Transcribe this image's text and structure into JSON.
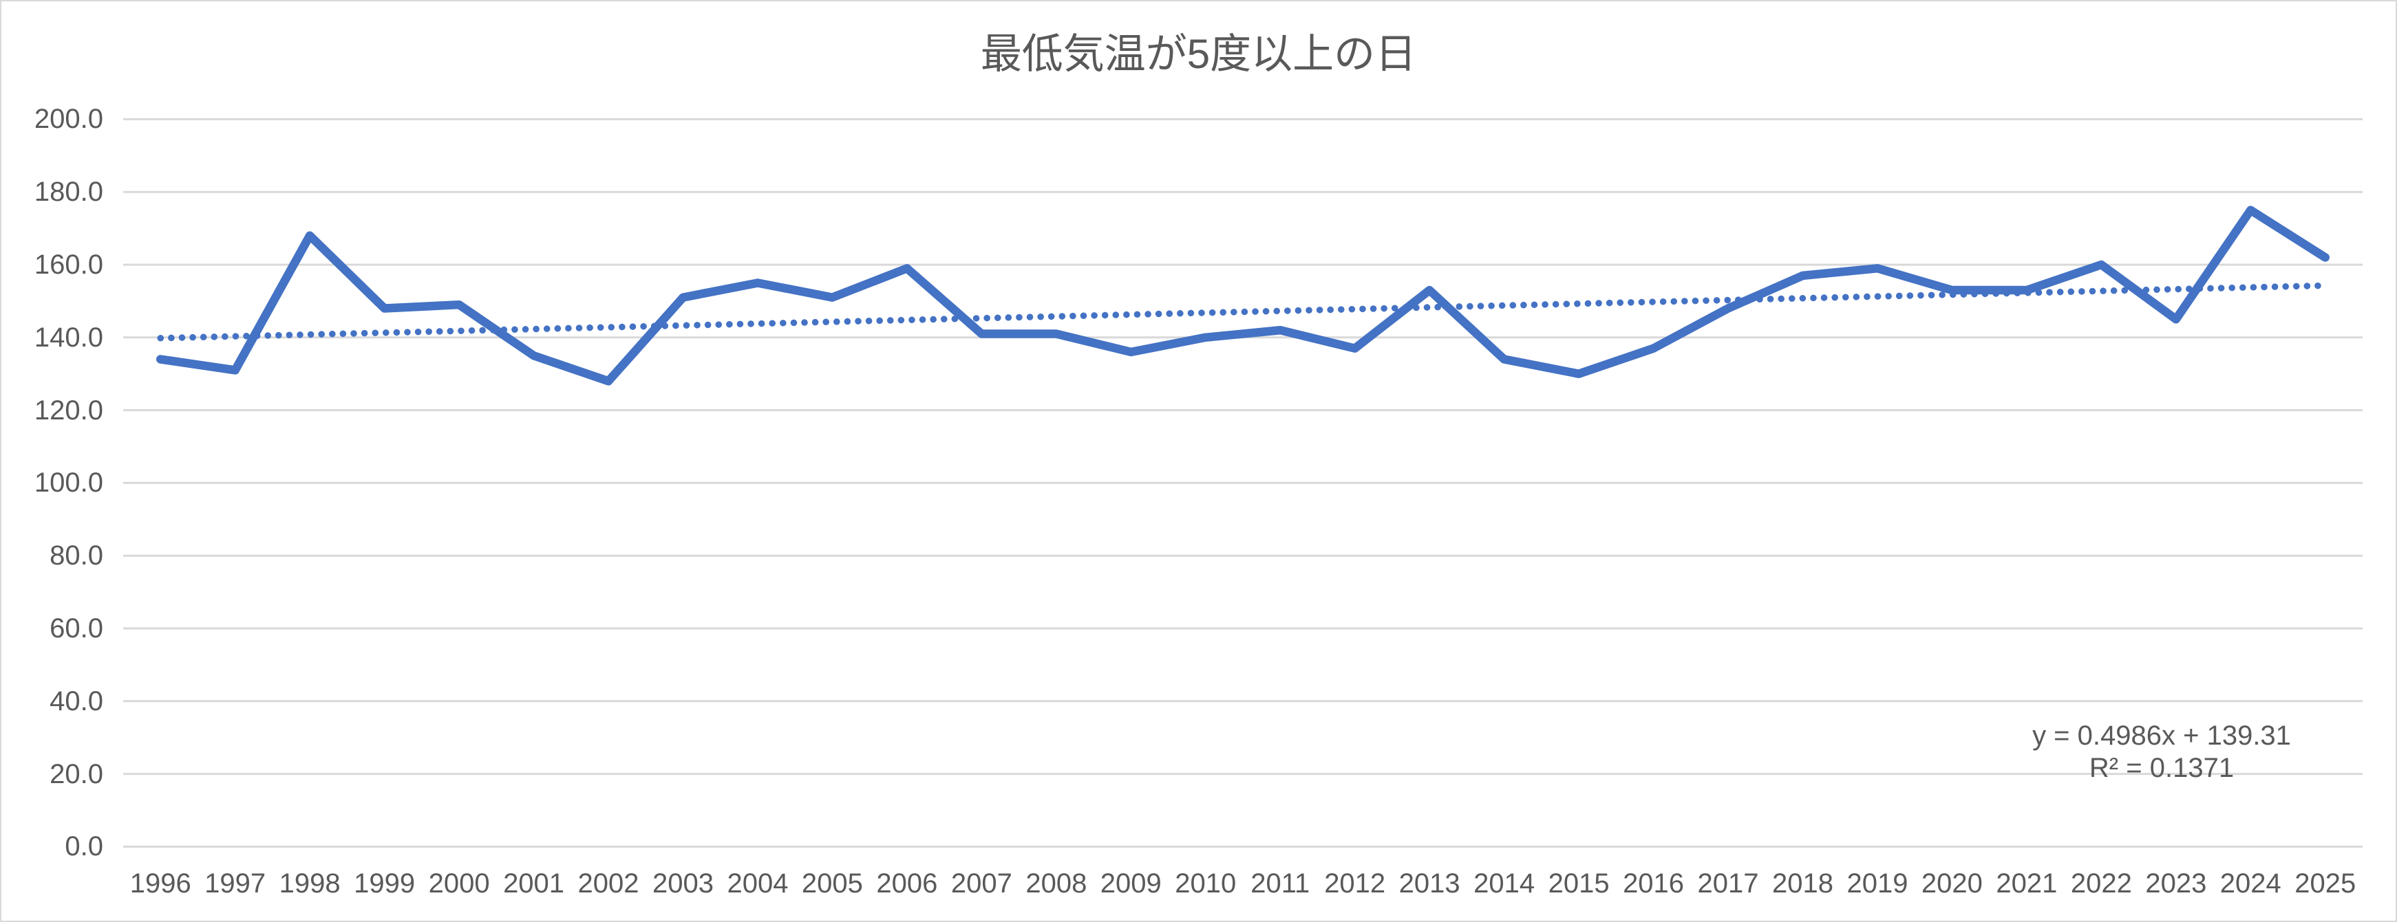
{
  "chart_data": {
    "type": "line",
    "title": "最低気温が5度以上の日",
    "categories": [
      "1996",
      "1997",
      "1998",
      "1999",
      "2000",
      "2001",
      "2002",
      "2003",
      "2004",
      "2005",
      "2006",
      "2007",
      "2008",
      "2009",
      "2010",
      "2011",
      "2012",
      "2013",
      "2014",
      "2015",
      "2016",
      "2017",
      "2018",
      "2019",
      "2020",
      "2021",
      "2022",
      "2023",
      "2024",
      "2025"
    ],
    "series": [
      {
        "name": "最低気温が5度以上の日",
        "values": [
          134,
          131,
          168,
          148,
          149,
          135,
          128,
          151,
          155,
          151,
          159,
          141,
          141,
          136,
          140,
          142,
          137,
          153,
          134,
          130,
          137,
          148,
          157,
          159,
          153,
          153,
          160,
          145,
          175,
          162
        ]
      }
    ],
    "ylim": [
      0,
      200
    ],
    "ytick_step": 20,
    "ytick_decimals": 1,
    "grid": true,
    "legend": "none",
    "trendline": {
      "type": "linear",
      "slope": 0.4986,
      "intercept": 139.31,
      "r_squared": 0.1371,
      "equation_label": "y = 0.4986x + 139.31",
      "r2_label": "R² = 0.1371"
    },
    "colors": {
      "series": "#4472C4",
      "trendline": "#4472C4",
      "gridline": "#D9D9D9",
      "axis_line": "#D9D9D9",
      "text": "#595959",
      "background": "#FFFFFF",
      "border": "#D9D9D9"
    }
  }
}
